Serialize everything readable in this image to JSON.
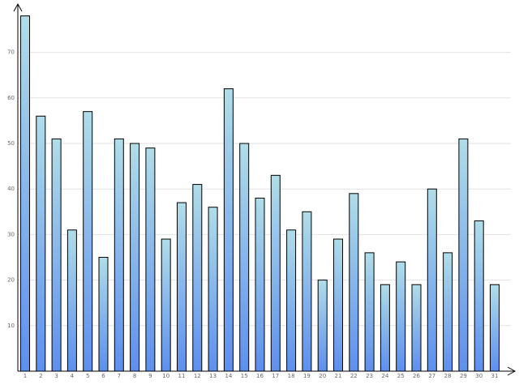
{
  "chart_data": {
    "type": "bar",
    "categories": [
      "1",
      "2",
      "3",
      "4",
      "5",
      "6",
      "7",
      "8",
      "9",
      "10",
      "11",
      "12",
      "13",
      "14",
      "15",
      "16",
      "17",
      "18",
      "19",
      "20",
      "21",
      "22",
      "23",
      "24",
      "25",
      "26",
      "27",
      "28",
      "29",
      "30",
      "31"
    ],
    "values": [
      78,
      56,
      51,
      31,
      57,
      25,
      51,
      50,
      49,
      29,
      37,
      41,
      36,
      62,
      50,
      38,
      43,
      31,
      35,
      20,
      29,
      39,
      26,
      19,
      24,
      19,
      40,
      26,
      51,
      33,
      19
    ],
    "gradient": [
      "#b0dde8",
      "#5d8fee"
    ],
    "ylim": [
      0,
      80
    ],
    "yticks": [
      10,
      20,
      30,
      40,
      50,
      60,
      70
    ],
    "grid": true
  }
}
